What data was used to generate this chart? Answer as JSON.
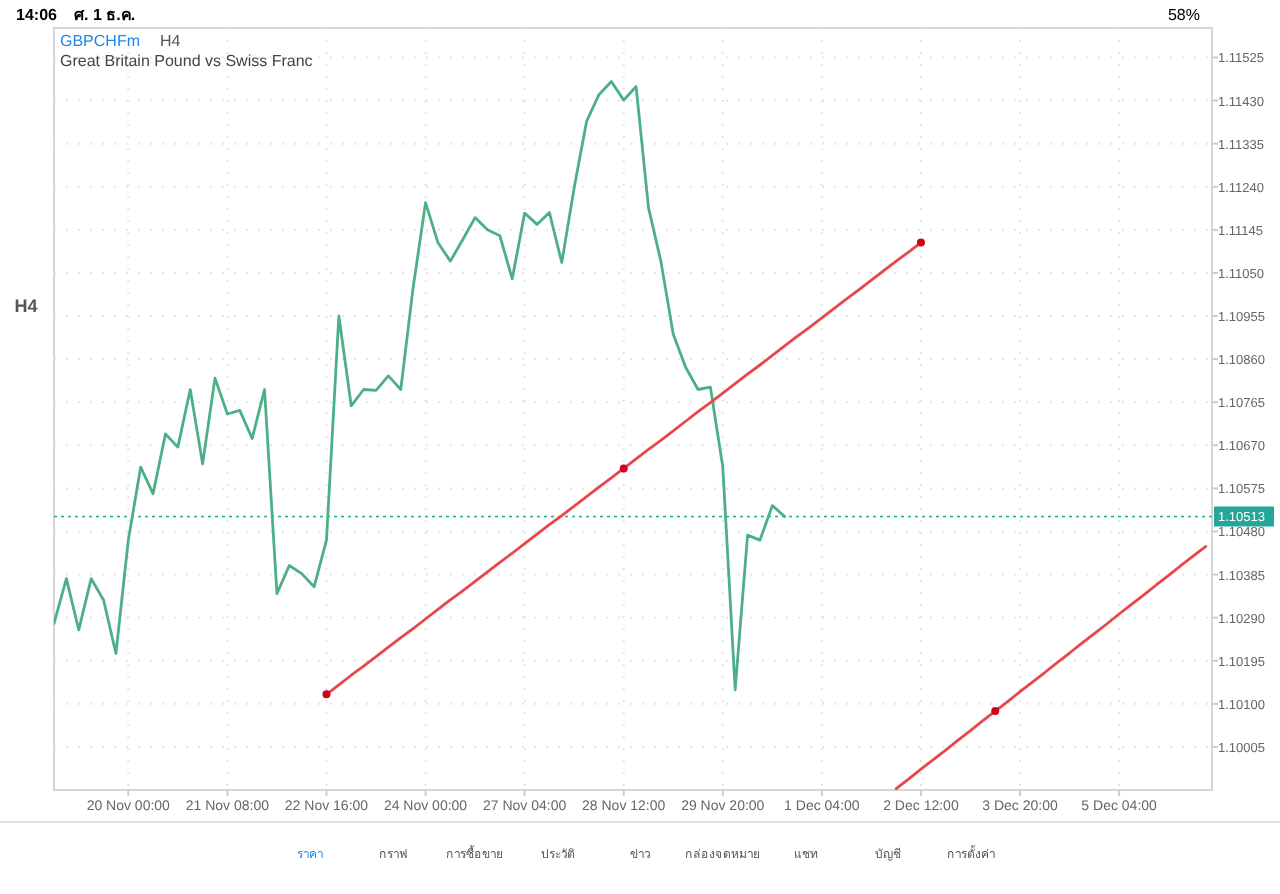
{
  "chart_data": {
    "type": "line",
    "title": "GBPCHFm",
    "subtitle": "Great Britain Pound vs Swiss Franc",
    "annotations": [
      "H4",
      "H4",
      "14:06",
      "ศ. 1 ธ.ค.",
      "58%",
      "ราคา",
      "กราฟ",
      "การซื้อขาย",
      "ประวัติ",
      "ข่าว",
      "กล่องจดหมาย",
      "แชท",
      "บัญชี",
      "การตั้งค่า"
    ],
    "categories": [
      null,
      null,
      null,
      null,
      null,
      null,
      "20 Nov 00:00",
      null,
      null,
      null,
      null,
      null,
      null,
      null,
      "21 Nov 08:00",
      null,
      null,
      null,
      null,
      null,
      null,
      null,
      "22 Nov 16:00",
      null,
      null,
      null,
      null,
      null,
      null,
      null,
      "24 Nov 00:00",
      null,
      null,
      null,
      null,
      null,
      null,
      null,
      "27 Nov 04:00",
      null,
      null,
      null,
      null,
      null,
      null,
      null,
      "28 Nov 12:00",
      null,
      null,
      null,
      null,
      null,
      null,
      null,
      "29 Nov 20:00",
      null,
      null,
      null,
      null,
      null,
      null,
      null,
      "1 Dec 04:00",
      null,
      null,
      null,
      null,
      null,
      null,
      null,
      "2 Dec 12:00",
      null,
      null,
      null,
      null,
      null,
      null,
      null,
      "3 Dec 20:00",
      null,
      null,
      null,
      null,
      null,
      null,
      null,
      "5 Dec 04:00",
      null,
      null,
      null,
      null,
      null,
      null,
      null
    ],
    "ylim": [
      1.0991,
      1.1159
    ],
    "yticks": [
      1.10005,
      {
        "value": 1.101,
        "label": "1.10100"
      },
      1.10195,
      {
        "value": 1.1029,
        "label": "1.10290"
      },
      1.10385,
      {
        "value": 1.1048,
        "label": "1.10480"
      },
      1.10575,
      {
        "value": 1.1067,
        "label": "1.10670"
      },
      1.10765,
      {
        "value": 1.1086,
        "label": "1.10860"
      },
      1.10955,
      {
        "value": 1.1105,
        "label": "1.11050"
      },
      1.11145,
      {
        "value": 1.1124,
        "label": "1.11240"
      },
      1.11335,
      {
        "value": 1.1143,
        "label": "1.11430"
      },
      1.11525
    ],
    "grid": true,
    "ref_lines": [
      {
        "axis": "y",
        "value": 1.10513,
        "label": "1.10513",
        "color": "#26a69a",
        "line_style": "dotted"
      }
    ],
    "series": [
      {
        "color": "#4caf86",
        "values": [
          1.10277,
          1.10376,
          1.10263,
          1.10376,
          1.10329,
          1.10211,
          1.10461,
          1.10622,
          1.10563,
          1.10695,
          1.10666,
          1.10793,
          1.10629,
          1.10818,
          1.10739,
          1.10747,
          1.10685,
          1.10793,
          1.10343,
          1.10405,
          1.10387,
          1.10358,
          1.10461,
          1.10955,
          1.10757,
          1.10793,
          1.10791,
          1.10823,
          1.10793,
          1.11018,
          1.11205,
          1.11117,
          1.11076,
          1.11123,
          1.11172,
          1.11145,
          1.11132,
          1.11037,
          1.11182,
          1.11157,
          1.11183,
          1.11073,
          1.11238,
          1.11384,
          1.11443,
          1.11472,
          1.11431,
          1.11461,
          1.11194,
          1.11076,
          1.10915,
          1.10842,
          1.10793,
          1.10798,
          1.10622,
          1.10131,
          1.10472,
          1.10461,
          1.10537,
          1.10513,
          null,
          null,
          null,
          null,
          null,
          null,
          null,
          null,
          null,
          null,
          null,
          null,
          null,
          null,
          null,
          null,
          null,
          null,
          null,
          null,
          null,
          null,
          null,
          null,
          null,
          null,
          null,
          null,
          null,
          null,
          null,
          null,
          null,
          null
        ]
      },
      {
        "type": "line",
        "color": "#e8474a",
        "values": [
          null,
          null,
          null,
          null,
          null,
          null,
          null,
          null,
          null,
          null,
          null,
          null,
          null,
          null,
          null,
          null,
          null,
          null,
          null,
          null,
          null,
          null,
          1.10121,
          1.10142,
          1.10163,
          1.10183,
          1.10204,
          1.10225,
          1.10246,
          1.10266,
          1.10287,
          1.10308,
          1.10329,
          1.10349,
          1.1037,
          1.10391,
          1.10412,
          1.10432,
          1.10453,
          1.10474,
          1.10495,
          1.10515,
          1.10536,
          1.10557,
          1.10578,
          1.10598,
          1.10619,
          1.1064,
          1.10661,
          1.10681,
          1.10702,
          1.10723,
          1.10744,
          1.10764,
          1.10785,
          1.10806,
          1.10827,
          1.10847,
          1.10868,
          1.10889,
          1.1091,
          1.1093,
          1.10951,
          1.10972,
          1.10993,
          1.11013,
          1.11034,
          1.11055,
          1.11076,
          1.11096,
          1.11117,
          null,
          null,
          null,
          null,
          null,
          null,
          null,
          null,
          null,
          null,
          null,
          null,
          null,
          null,
          null,
          null,
          null,
          null,
          null,
          null,
          null,
          null,
          null
        ]
      },
      {
        "type": "line",
        "color": "#e8474a",
        "values": [
          null,
          null,
          null,
          null,
          null,
          null,
          null,
          null,
          null,
          null,
          null,
          null,
          null,
          null,
          null,
          null,
          null,
          null,
          null,
          null,
          null,
          null,
          null,
          null,
          null,
          null,
          null,
          null,
          null,
          null,
          null,
          null,
          null,
          null,
          null,
          null,
          null,
          null,
          null,
          null,
          null,
          null,
          null,
          null,
          null,
          null,
          null,
          null,
          null,
          null,
          null,
          null,
          null,
          null,
          null,
          null,
          null,
          null,
          null,
          null,
          null,
          null,
          null,
          null,
          null,
          null,
          null,
          null,
          1.09913,
          1.09934,
          1.09956,
          1.09977,
          1.09998,
          1.1002,
          1.10041,
          1.10063,
          1.10084,
          1.10105,
          1.10127,
          1.10148,
          1.10169,
          1.10191,
          1.10212,
          1.10234,
          1.10255,
          1.10276,
          1.10298,
          1.10319,
          1.1034,
          1.10362,
          1.10383,
          1.10405,
          1.10426,
          1.10447
        ]
      },
      {
        "type": "scatter",
        "color": "#d0021b",
        "values": [
          null,
          null,
          null,
          null,
          null,
          null,
          null,
          null,
          null,
          null,
          null,
          null,
          null,
          null,
          null,
          null,
          null,
          null,
          null,
          null,
          null,
          null,
          1.10121,
          null,
          null,
          null,
          null,
          null,
          null,
          null,
          null,
          null,
          null,
          null,
          null,
          null,
          null,
          null,
          null,
          null,
          null,
          null,
          null,
          null,
          null,
          null,
          1.10619,
          null,
          null,
          null,
          null,
          null,
          null,
          null,
          null,
          null,
          null,
          null,
          null,
          null,
          null,
          null,
          null,
          null,
          null,
          null,
          null,
          null,
          null,
          null,
          1.11117,
          null,
          null,
          null,
          null,
          null,
          1.10084,
          null,
          null,
          null,
          null,
          null,
          null,
          null,
          null,
          null,
          null,
          null,
          null,
          null,
          null,
          null,
          null,
          null
        ]
      }
    ]
  }
}
